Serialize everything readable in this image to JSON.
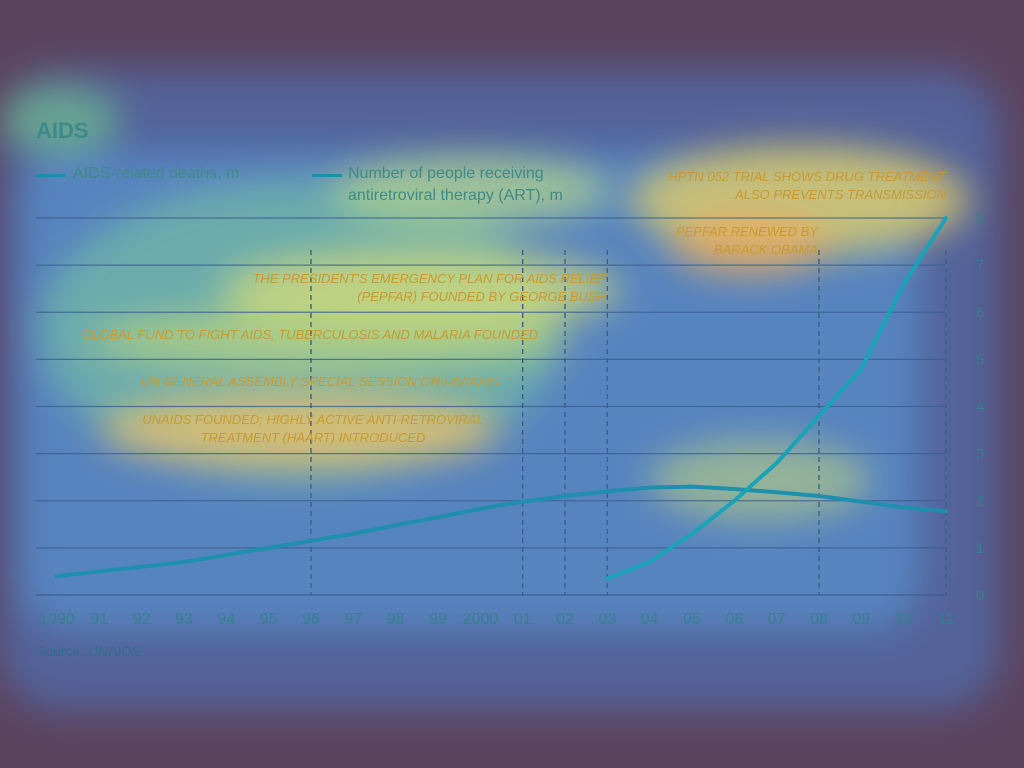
{
  "chart_data": {
    "type": "line",
    "title": "AIDS",
    "x": [
      "1990",
      "91",
      "92",
      "93",
      "94",
      "95",
      "96",
      "97",
      "98",
      "99",
      "2000",
      "01",
      "02",
      "03",
      "04",
      "05",
      "06",
      "07",
      "08",
      "09",
      "10",
      "11"
    ],
    "series": [
      {
        "name": "AIDS-related deaths, m",
        "color": "#1f8fae",
        "values": [
          0.4,
          0.5,
          0.6,
          0.7,
          0.85,
          1.0,
          1.15,
          1.3,
          1.48,
          1.65,
          1.83,
          1.98,
          2.1,
          2.2,
          2.28,
          2.3,
          2.25,
          2.18,
          2.1,
          1.98,
          1.86,
          1.78
        ]
      },
      {
        "name": "Number of people receiving antiretroviral therapy (ART), m",
        "color": "#1aa3b6",
        "values": [
          null,
          null,
          null,
          null,
          null,
          null,
          null,
          null,
          null,
          null,
          null,
          null,
          null,
          0.35,
          0.7,
          1.3,
          2.0,
          2.8,
          3.8,
          4.8,
          6.6,
          8.0
        ]
      }
    ],
    "ylim": [
      0,
      8
    ],
    "yticks": [
      0,
      1,
      2,
      3,
      4,
      5,
      6,
      7,
      8
    ],
    "y_axis_side": "right",
    "grid": true,
    "legend_placement": "top-left",
    "annotations": [
      {
        "x": "96",
        "lines": [
          "UNAIDS FOUNDED; HIGHLY ACTIVE ANTI-RETROVIRAL",
          "TREATMENT (HAART) INTRODUCED"
        ]
      },
      {
        "x": "01",
        "lines": [
          "UN GENERAL ASSEMBLY SPECIAL SESSION ON HIV/AIDS"
        ]
      },
      {
        "x": "02",
        "lines": [
          "GLOBAL FUND TO FIGHT AIDS, TUBERCULOSIS AND MALARIA FOUNDED"
        ]
      },
      {
        "x": "03",
        "lines": [
          "THE PRESIDENT'S EMERGENCY PLAN FOR AIDS RELIEF",
          "(PEPFAR) FOUNDED BY GEORGE BUSH"
        ]
      },
      {
        "x": "08",
        "lines": [
          "PEPFAR RENEWED BY",
          "BARACK OBAMA"
        ]
      },
      {
        "x": "11",
        "lines": [
          "HPTN 052 TRIAL SHOWS DRUG TREATMENT",
          "ALSO PREVENTS TRANSMISSION"
        ]
      }
    ],
    "source": "Source: UNAIDS"
  },
  "colors": {
    "background": "#5b4460",
    "grid": "#3b5f8f",
    "axis_text": "#35808c"
  }
}
